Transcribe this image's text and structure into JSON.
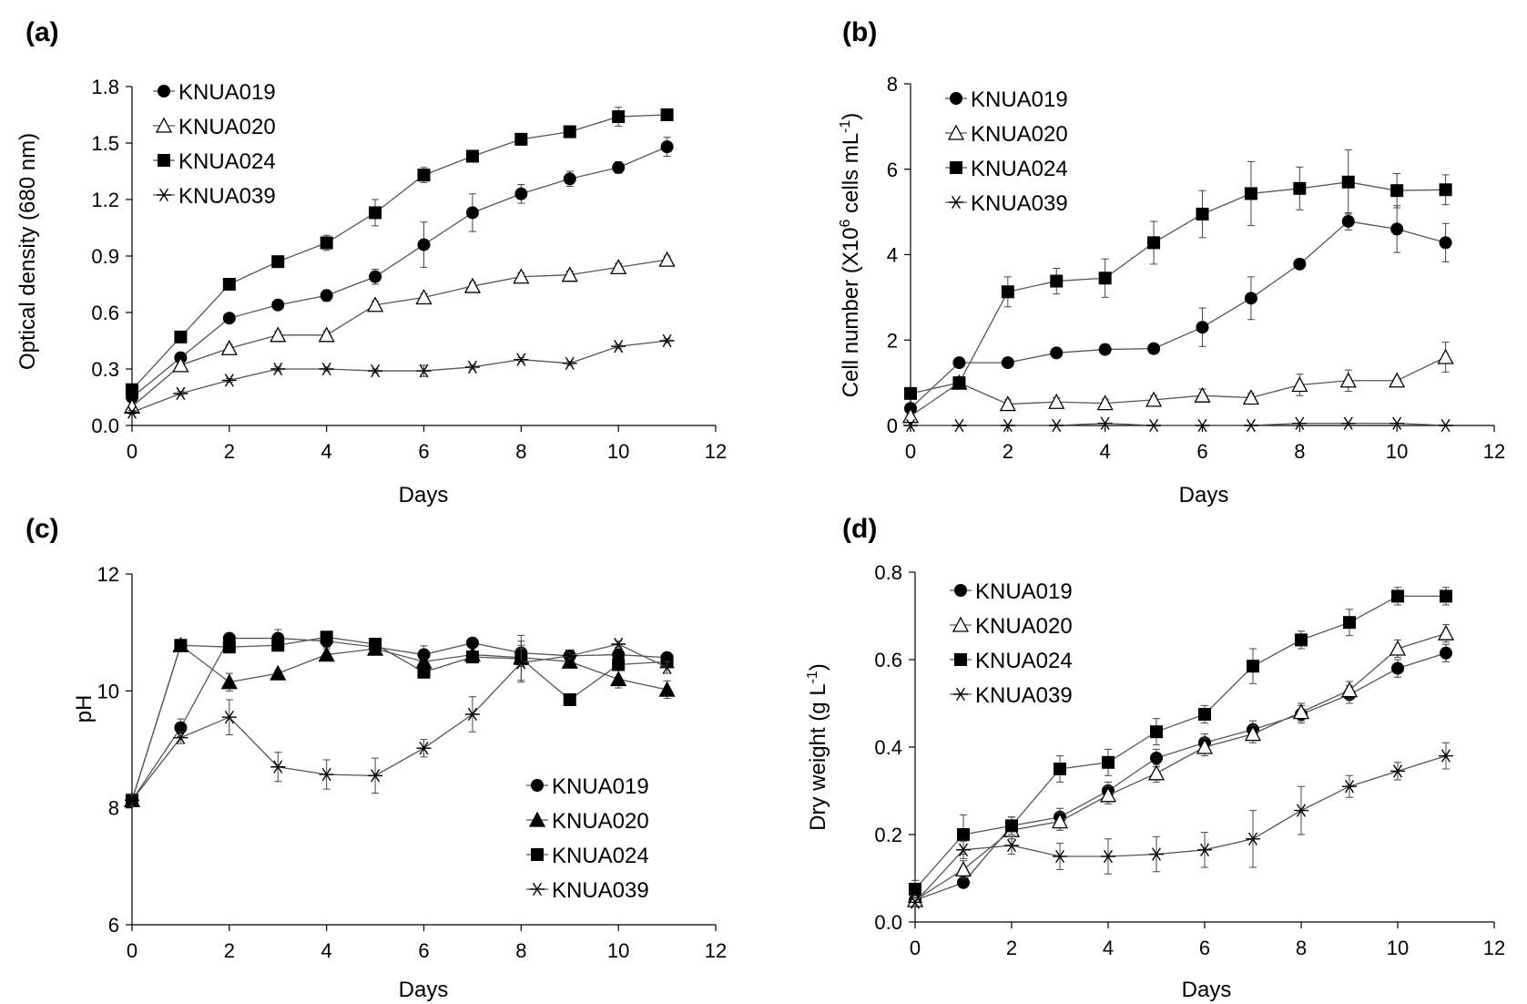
{
  "chart_data": [
    {
      "panel": "(a)",
      "type": "line",
      "xlabel": "Days",
      "ylabel": "Optical density (680 nm)",
      "xlim": [
        0,
        12
      ],
      "ylim": [
        0,
        1.8
      ],
      "xticks": [
        "0",
        "2",
        "4",
        "6",
        "8",
        "10",
        "12"
      ],
      "yticks": [
        "0.0",
        "0.3",
        "0.6",
        "0.9",
        "1.2",
        "1.5",
        "1.8"
      ],
      "legend_position": "top-left",
      "x": [
        0,
        1,
        2,
        3,
        4,
        5,
        6,
        7,
        8,
        9,
        10,
        11
      ],
      "series": [
        {
          "name": "KNUA019",
          "marker": "circle",
          "values": [
            0.15,
            0.36,
            0.57,
            0.64,
            0.69,
            0.79,
            0.96,
            1.13,
            1.23,
            1.31,
            1.37,
            1.48
          ],
          "errors": [
            0.01,
            0.02,
            0.02,
            0.02,
            0.03,
            0.04,
            0.12,
            0.1,
            0.05,
            0.04,
            0.03,
            0.05
          ]
        },
        {
          "name": "KNUA020",
          "marker": "triangle-open",
          "values": [
            0.1,
            0.32,
            0.41,
            0.48,
            0.48,
            0.64,
            0.68,
            0.74,
            0.79,
            0.8,
            0.84,
            0.88
          ],
          "errors": [
            0.01,
            0.02,
            0.02,
            0.02,
            0.02,
            0.02,
            0.02,
            0.02,
            0.02,
            0.02,
            0.02,
            0.02
          ]
        },
        {
          "name": "KNUA024",
          "marker": "square",
          "values": [
            0.19,
            0.47,
            0.75,
            0.87,
            0.97,
            1.13,
            1.33,
            1.43,
            1.52,
            1.56,
            1.64,
            1.65
          ],
          "errors": [
            0.01,
            0.02,
            0.02,
            0.02,
            0.04,
            0.07,
            0.04,
            0.02,
            0.02,
            0.03,
            0.05,
            0.01
          ]
        },
        {
          "name": "KNUA039",
          "marker": "star",
          "values": [
            0.07,
            0.17,
            0.24,
            0.3,
            0.3,
            0.29,
            0.29,
            0.31,
            0.35,
            0.33,
            0.42,
            0.45
          ],
          "errors": [
            0.01,
            0.01,
            0.01,
            0.01,
            0.01,
            0.01,
            0.03,
            0.01,
            0.01,
            0.01,
            0.01,
            0.01
          ]
        }
      ]
    },
    {
      "panel": "(b)",
      "type": "line",
      "xlabel": "Days",
      "ylabel_main": "Cell number  (X10",
      "ylabel_sup1": "6",
      "ylabel_mid": " cells mL",
      "ylabel_sup2": "-1",
      "ylabel_end": ")",
      "xlim": [
        0,
        12
      ],
      "ylim": [
        0,
        8
      ],
      "xticks": [
        "0",
        "2",
        "4",
        "6",
        "8",
        "10",
        "12"
      ],
      "yticks": [
        "0",
        "2",
        "4",
        "6",
        "8"
      ],
      "legend_position": "top-left",
      "x": [
        0,
        1,
        2,
        3,
        4,
        5,
        6,
        7,
        8,
        9,
        10,
        11
      ],
      "series": [
        {
          "name": "KNUA019",
          "marker": "circle",
          "values": [
            0.4,
            1.47,
            1.47,
            1.7,
            1.78,
            1.8,
            2.3,
            2.98,
            3.78,
            4.78,
            4.6,
            4.28
          ],
          "errors": [
            0.05,
            0.05,
            0.05,
            0.05,
            0.05,
            0.05,
            0.45,
            0.5,
            0.05,
            0.2,
            0.55,
            0.45
          ]
        },
        {
          "name": "KNUA020",
          "marker": "triangle-open",
          "values": [
            0.22,
            1.0,
            0.5,
            0.55,
            0.52,
            0.6,
            0.7,
            0.65,
            0.95,
            1.05,
            1.05,
            1.6
          ],
          "errors": [
            0.05,
            0.05,
            0.1,
            0.1,
            0.1,
            0.1,
            0.15,
            0.1,
            0.25,
            0.25,
            0.05,
            0.35
          ]
        },
        {
          "name": "KNUA024",
          "marker": "square",
          "values": [
            0.75,
            1.0,
            3.13,
            3.38,
            3.45,
            4.28,
            4.95,
            5.43,
            5.55,
            5.7,
            5.5,
            5.52
          ],
          "errors": [
            0.05,
            0.05,
            0.35,
            0.3,
            0.45,
            0.5,
            0.55,
            0.75,
            0.5,
            0.75,
            0.4,
            0.35
          ]
        },
        {
          "name": "KNUA039",
          "marker": "star",
          "values": [
            0.0,
            0.0,
            0.0,
            0.0,
            0.05,
            0.0,
            0.0,
            0.0,
            0.05,
            0.05,
            0.05,
            0.0
          ],
          "errors": [
            0,
            0,
            0,
            0,
            0,
            0,
            0,
            0,
            0,
            0,
            0,
            0
          ]
        }
      ]
    },
    {
      "panel": "(c)",
      "type": "line",
      "xlabel": "Days",
      "ylabel": "pH",
      "xlim": [
        0,
        12
      ],
      "ylim": [
        6,
        12
      ],
      "xticks": [
        "0",
        "2",
        "4",
        "6",
        "8",
        "10",
        "12"
      ],
      "yticks": [
        "6",
        "8",
        "10",
        "12"
      ],
      "legend_position": "bottom-right",
      "x": [
        0,
        1,
        2,
        3,
        4,
        5,
        6,
        7,
        8,
        9,
        10,
        11
      ],
      "series": [
        {
          "name": "KNUA019",
          "marker": "circle",
          "values": [
            8.13,
            9.37,
            10.9,
            10.9,
            10.85,
            10.75,
            10.62,
            10.82,
            10.65,
            10.6,
            10.62,
            10.57
          ],
          "errors": [
            0.1,
            0.15,
            0.05,
            0.15,
            0.1,
            0.05,
            0.15,
            0.05,
            0.2,
            0.05,
            0.1,
            0.05
          ]
        },
        {
          "name": "KNUA020",
          "marker": "triangle",
          "values": [
            8.13,
            10.78,
            10.15,
            10.3,
            10.62,
            10.72,
            10.5,
            10.62,
            10.57,
            10.5,
            10.2,
            10.02
          ],
          "errors": [
            0.1,
            0.05,
            0.15,
            0.05,
            0.1,
            0.05,
            0.05,
            0.05,
            0.15,
            0.05,
            0.15,
            0.15
          ]
        },
        {
          "name": "KNUA024",
          "marker": "square",
          "values": [
            8.13,
            10.78,
            10.75,
            10.78,
            10.92,
            10.8,
            10.32,
            10.58,
            10.55,
            9.85,
            10.45,
            10.5
          ],
          "errors": [
            0.1,
            0.05,
            0.05,
            0.05,
            0.05,
            0.05,
            0.05,
            0.05,
            0.4,
            0.05,
            0.05,
            0.05
          ]
        },
        {
          "name": "KNUA039",
          "marker": "star",
          "values": [
            8.13,
            9.2,
            9.55,
            8.7,
            8.57,
            8.55,
            9.02,
            9.6,
            10.48,
            10.6,
            10.8,
            10.4
          ],
          "errors": [
            0.1,
            0.1,
            0.3,
            0.25,
            0.25,
            0.3,
            0.15,
            0.3,
            0.3,
            0.05,
            0.05,
            0.1
          ]
        }
      ]
    },
    {
      "panel": "(d)",
      "type": "line",
      "xlabel": "Days",
      "ylabel_main": "Dry weight (g L",
      "ylabel_sup": "-1",
      "ylabel_end": ")",
      "xlim": [
        0,
        12
      ],
      "ylim": [
        0,
        0.8
      ],
      "xticks": [
        "0",
        "2",
        "4",
        "6",
        "8",
        "10",
        "12"
      ],
      "yticks": [
        "0.0",
        "0.2",
        "0.4",
        "0.6",
        "0.8"
      ],
      "legend_position": "top-left",
      "x": [
        0,
        1,
        2,
        3,
        4,
        5,
        6,
        7,
        8,
        9,
        10,
        11
      ],
      "series": [
        {
          "name": "KNUA019",
          "marker": "circle",
          "values": [
            0.05,
            0.09,
            0.22,
            0.24,
            0.3,
            0.375,
            0.41,
            0.44,
            0.475,
            0.52,
            0.58,
            0.615
          ],
          "errors": [
            0.01,
            0.01,
            0.02,
            0.02,
            0.02,
            0.02,
            0.02,
            0.02,
            0.02,
            0.02,
            0.02,
            0.02
          ]
        },
        {
          "name": "KNUA020",
          "marker": "triangle-open",
          "values": [
            0.05,
            0.12,
            0.21,
            0.23,
            0.29,
            0.34,
            0.4,
            0.43,
            0.48,
            0.53,
            0.625,
            0.66
          ],
          "errors": [
            0.01,
            0.02,
            0.02,
            0.02,
            0.02,
            0.02,
            0.02,
            0.02,
            0.02,
            0.02,
            0.02,
            0.02
          ]
        },
        {
          "name": "KNUA024",
          "marker": "square",
          "values": [
            0.075,
            0.2,
            0.22,
            0.35,
            0.365,
            0.435,
            0.475,
            0.585,
            0.645,
            0.685,
            0.745,
            0.745
          ],
          "errors": [
            0.02,
            0.045,
            0.02,
            0.03,
            0.03,
            0.03,
            0.02,
            0.04,
            0.02,
            0.03,
            0.02,
            0.02
          ]
        },
        {
          "name": "KNUA039",
          "marker": "star",
          "values": [
            0.045,
            0.165,
            0.175,
            0.15,
            0.15,
            0.155,
            0.165,
            0.19,
            0.255,
            0.31,
            0.345,
            0.38
          ],
          "errors": [
            0.01,
            0.02,
            0.02,
            0.03,
            0.04,
            0.04,
            0.04,
            0.065,
            0.055,
            0.025,
            0.02,
            0.03
          ]
        }
      ]
    }
  ]
}
